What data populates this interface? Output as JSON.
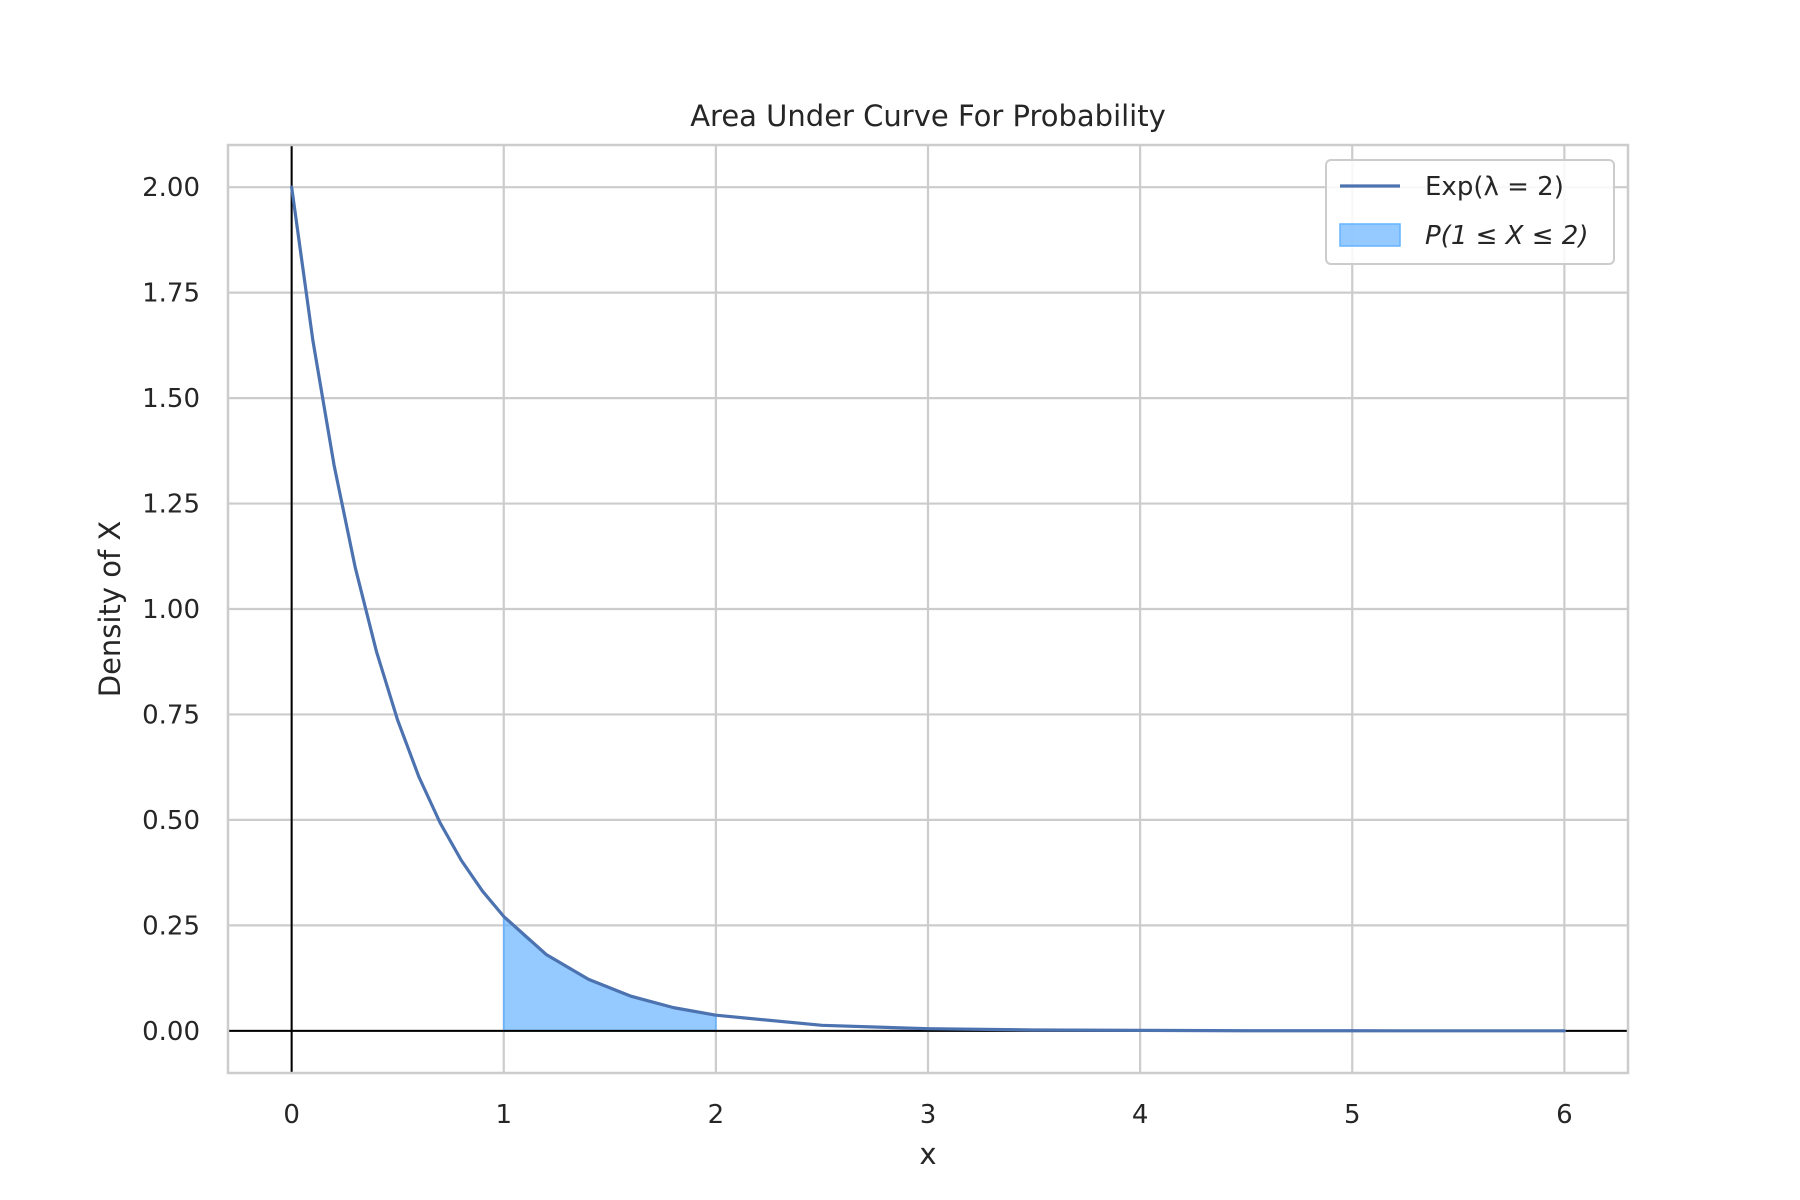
{
  "chart_data": {
    "type": "line",
    "title": "Area Under Curve For Probability",
    "xlabel": "x",
    "ylabel": "Density of X",
    "xlim": [
      -0.3,
      6.3
    ],
    "ylim": [
      -0.1,
      2.1
    ],
    "xticks": [
      0,
      1,
      2,
      3,
      4,
      5,
      6
    ],
    "xtick_labels": [
      "0",
      "1",
      "2",
      "3",
      "4",
      "5",
      "6"
    ],
    "yticks": [
      0,
      0.25,
      0.5,
      0.75,
      1.0,
      1.25,
      1.5,
      1.75,
      2.0
    ],
    "ytick_labels": [
      "0.00",
      "0.25",
      "0.50",
      "0.75",
      "1.00",
      "1.25",
      "1.50",
      "1.75",
      "2.00"
    ],
    "grid": true,
    "reference_lines": {
      "horizontal_y": 0,
      "vertical_x": 0
    },
    "series": [
      {
        "name": "Exp(λ = 2)",
        "kind": "line",
        "color": "#4c72b0",
        "x": [
          0,
          0.1,
          0.2,
          0.3,
          0.4,
          0.5,
          0.6,
          0.7,
          0.8,
          0.9,
          1.0,
          1.2,
          1.4,
          1.6,
          1.8,
          2.0,
          2.5,
          3.0,
          3.5,
          4.0,
          4.5,
          5.0,
          5.5,
          6.0
        ],
        "y": [
          2.0,
          1.637,
          1.341,
          1.098,
          0.899,
          0.736,
          0.602,
          0.493,
          0.404,
          0.331,
          0.271,
          0.181,
          0.122,
          0.082,
          0.055,
          0.037,
          0.013,
          0.005,
          0.002,
          0.001,
          0.0002,
          0.0001,
          0.0,
          0.0
        ]
      },
      {
        "name": "P(1 ≤ X ≤ 2)",
        "kind": "area",
        "color": "#66b3ff",
        "x": [
          1.0,
          1.1,
          1.2,
          1.3,
          1.4,
          1.5,
          1.6,
          1.7,
          1.8,
          1.9,
          2.0
        ],
        "y": [
          0.271,
          0.222,
          0.181,
          0.149,
          0.122,
          0.1,
          0.082,
          0.067,
          0.055,
          0.045,
          0.037
        ]
      }
    ],
    "legend": {
      "position": "top-right",
      "entries": [
        {
          "label": "Exp(λ = 2)",
          "kind": "line",
          "color": "#4c72b0"
        },
        {
          "label": "P(1 ≤ X ≤ 2)",
          "kind": "patch",
          "color": "#66b3ff"
        }
      ]
    }
  }
}
